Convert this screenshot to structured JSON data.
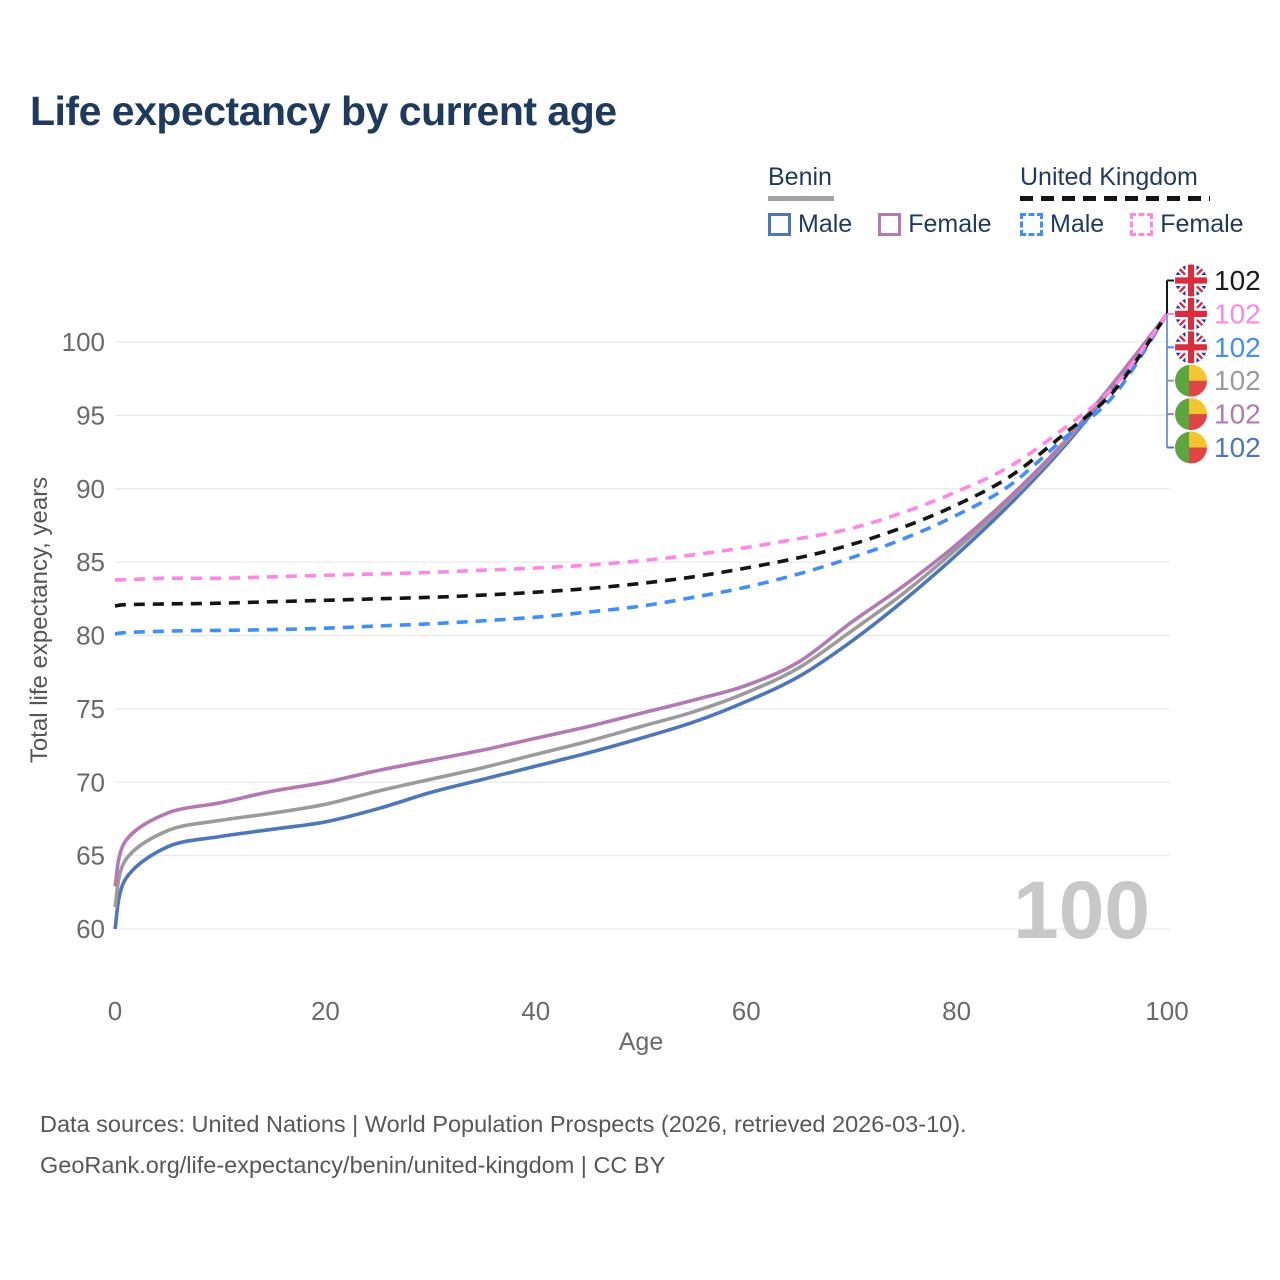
{
  "title": "Life expectancy by current age",
  "legend": {
    "groups": [
      {
        "name": "Benin",
        "line_style": "solid",
        "underline_color": "#a2a2a2",
        "items": [
          {
            "label": "Male",
            "color": "#4d76bb"
          },
          {
            "label": "Female",
            "color": "#b279b2"
          }
        ]
      },
      {
        "name": "United Kingdom",
        "line_style": "dashed",
        "underline_color": "#141414",
        "items": [
          {
            "label": "Male",
            "color": "#3f8efa"
          },
          {
            "label": "Female",
            "color": "#ff87e3"
          }
        ]
      }
    ]
  },
  "chart_data": {
    "type": "line",
    "title": "Life expectancy by current age",
    "xlabel": "Age",
    "ylabel": "Total life expectancy, years",
    "x": [
      0,
      1,
      5,
      10,
      15,
      20,
      25,
      30,
      35,
      40,
      45,
      50,
      55,
      60,
      65,
      70,
      75,
      80,
      85,
      90,
      95,
      100
    ],
    "xticks": [
      0,
      20,
      40,
      60,
      80,
      100
    ],
    "yticks": [
      60,
      65,
      70,
      75,
      80,
      85,
      90,
      95,
      100
    ],
    "xlim": [
      0,
      100
    ],
    "ylim": [
      58,
      103.5
    ],
    "grid": "horizontal",
    "legend_position": "top-right",
    "series": [
      {
        "name": "Benin Male",
        "country": "Benin",
        "group": "Male",
        "style": "solid",
        "color": "#4d76bb",
        "values": [
          60.0,
          63.4,
          65.6,
          66.3,
          66.8,
          67.3,
          68.2,
          69.3,
          70.2,
          71.1,
          72.0,
          73.0,
          74.1,
          75.5,
          77.2,
          79.6,
          82.4,
          85.5,
          88.9,
          92.7,
          97.1,
          101.9
        ]
      },
      {
        "name": "Benin Total",
        "country": "Benin",
        "group": "Total",
        "style": "solid",
        "color": "#9b9b9b",
        "values": [
          61.5,
          64.7,
          66.7,
          67.4,
          67.9,
          68.5,
          69.4,
          70.2,
          71.0,
          71.9,
          72.8,
          73.8,
          74.8,
          76.1,
          77.8,
          80.3,
          82.9,
          85.9,
          89.2,
          92.9,
          97.2,
          101.9
        ]
      },
      {
        "name": "Benin Female",
        "country": "Benin",
        "group": "Female",
        "style": "solid",
        "color": "#b279b2",
        "values": [
          62.9,
          66.0,
          67.9,
          68.6,
          69.4,
          70.0,
          70.8,
          71.5,
          72.2,
          73.0,
          73.8,
          74.7,
          75.6,
          76.6,
          78.2,
          80.9,
          83.4,
          86.2,
          89.4,
          93.0,
          97.3,
          101.9
        ]
      },
      {
        "name": "United Kingdom Male",
        "country": "United Kingdom",
        "group": "Male",
        "style": "dashed",
        "color": "#3f8efa",
        "values": [
          80.1,
          80.2,
          80.3,
          80.35,
          80.4,
          80.5,
          80.65,
          80.8,
          81.0,
          81.25,
          81.6,
          82.0,
          82.6,
          83.3,
          84.2,
          85.3,
          86.6,
          88.2,
          90.2,
          93.3,
          96.4,
          101.9
        ]
      },
      {
        "name": "United Kingdom Total",
        "country": "United Kingdom",
        "group": "Total",
        "style": "dashed",
        "color": "#141414",
        "values": [
          82.0,
          82.1,
          82.15,
          82.2,
          82.3,
          82.4,
          82.5,
          82.6,
          82.75,
          82.95,
          83.2,
          83.55,
          84.0,
          84.6,
          85.3,
          86.2,
          87.4,
          88.9,
          90.8,
          93.6,
          96.7,
          101.9
        ]
      },
      {
        "name": "United Kingdom Female",
        "country": "United Kingdom",
        "group": "Female",
        "style": "dashed",
        "color": "#ff87e3",
        "values": [
          83.8,
          83.8,
          83.9,
          83.9,
          84.0,
          84.1,
          84.2,
          84.3,
          84.45,
          84.6,
          84.8,
          85.1,
          85.5,
          86.0,
          86.6,
          87.3,
          88.4,
          89.8,
          91.5,
          94.0,
          97.0,
          101.9
        ]
      }
    ],
    "end_labels": [
      {
        "series": "United Kingdom Total",
        "flag": "uk",
        "value": "102",
        "color": "#1a1a1a"
      },
      {
        "series": "United Kingdom Female",
        "flag": "uk",
        "value": "102",
        "color": "#ff87e3"
      },
      {
        "series": "United Kingdom Male",
        "flag": "uk",
        "value": "102",
        "color": "#3f8efa"
      },
      {
        "series": "Benin Total",
        "flag": "benin",
        "value": "102",
        "color": "#9b9b9b"
      },
      {
        "series": "Benin Female",
        "flag": "benin",
        "value": "102",
        "color": "#b279b2"
      },
      {
        "series": "Benin Male",
        "flag": "benin",
        "value": "102",
        "color": "#4d76bb"
      }
    ],
    "connector": {
      "top_color": "#141414",
      "bottom_color": "#7d9ad1"
    },
    "watermark": "100",
    "colors": {
      "gridline": "#e9e9e9",
      "axis_text": "#6a6a6a",
      "axis_title": "#555555",
      "watermark": "#c8c8c8"
    }
  },
  "flags": {
    "benin": {
      "green": "#5da53f",
      "yellow": "#f5c531",
      "red": "#e04444"
    },
    "uk": {
      "blue": "#26379c",
      "red": "#d92c3f",
      "white": "#ffffff"
    }
  },
  "footer": {
    "line1": "Data sources: United Nations | World Population Prospects (2026, retrieved 2026-03-10).",
    "line2": "GeoRank.org/life-expectancy/benin/united-kingdom | CC BY"
  }
}
